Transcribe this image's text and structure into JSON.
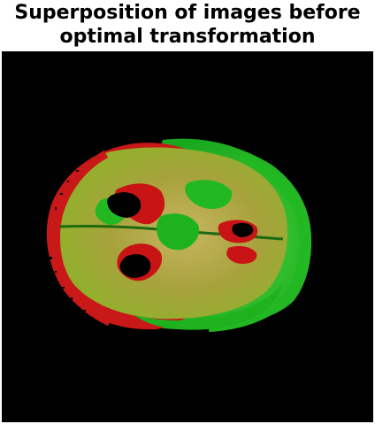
{
  "figure": {
    "title_line_1": "Superposition of images before",
    "title_line_2": "optimal transformation"
  },
  "image": {
    "background_color": "#000000",
    "overlay_colors": {
      "reference": "#c81414",
      "moving": "#22c422",
      "overlap": "#9ea43a"
    }
  }
}
